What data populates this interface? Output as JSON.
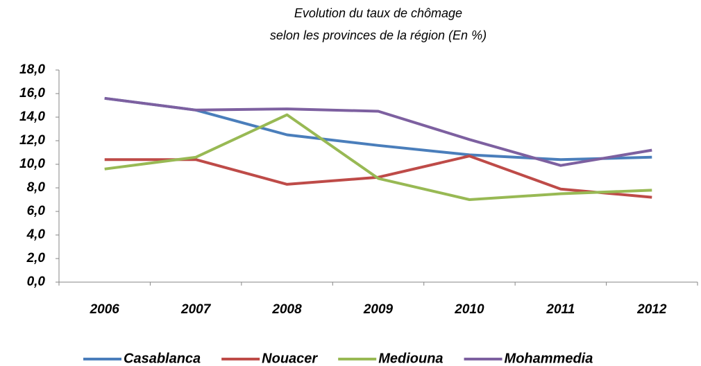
{
  "chart_data": {
    "type": "line",
    "title": "Evolution du taux de chômage",
    "subtitle": "selon les provinces de la région (En %)",
    "categories": [
      "2006",
      "2007",
      "2008",
      "2009",
      "2010",
      "2011",
      "2012"
    ],
    "series": [
      {
        "name": "Casablanca",
        "color": "#4a7ebb",
        "values": [
          15.6,
          14.6,
          12.5,
          11.6,
          10.8,
          10.4,
          10.6
        ]
      },
      {
        "name": "Nouacer",
        "color": "#be4b48",
        "values": [
          10.4,
          10.4,
          8.3,
          8.9,
          10.7,
          7.9,
          7.2
        ]
      },
      {
        "name": "Mediouna",
        "color": "#98b954",
        "values": [
          9.6,
          10.6,
          14.2,
          8.8,
          7.0,
          7.5,
          7.8
        ]
      },
      {
        "name": "Mohammedia",
        "color": "#7d60a0",
        "values": [
          15.6,
          14.6,
          14.7,
          14.5,
          12.1,
          9.9,
          11.2
        ]
      }
    ],
    "ylim": [
      0,
      18
    ],
    "yticks": [
      {
        "value": 0,
        "label": "0,0"
      },
      {
        "value": 2,
        "label": "2,0"
      },
      {
        "value": 4,
        "label": "4,0"
      },
      {
        "value": 6,
        "label": "6,0"
      },
      {
        "value": 8,
        "label": "8,0"
      },
      {
        "value": 10,
        "label": "10,0"
      },
      {
        "value": 12,
        "label": "12,0"
      },
      {
        "value": 14,
        "label": "14,0"
      },
      {
        "value": 16,
        "label": "16,0"
      },
      {
        "value": 18,
        "label": "18,0"
      }
    ],
    "grid": false,
    "legend": "bottom"
  }
}
